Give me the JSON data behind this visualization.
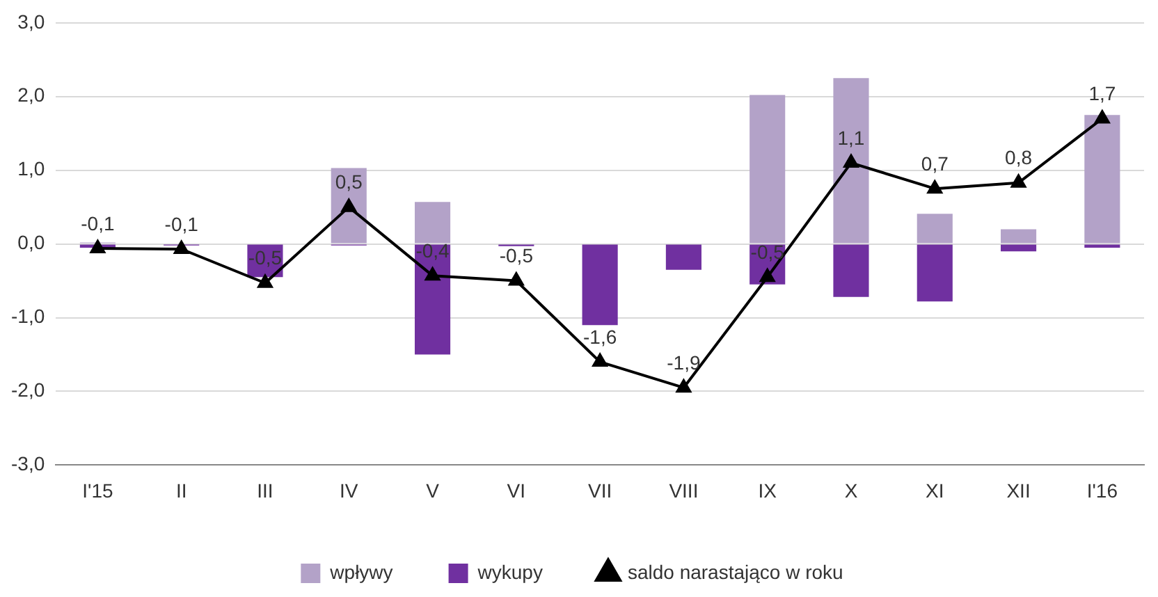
{
  "chart_data": {
    "type": "bar",
    "stacked": true,
    "categories": [
      "I'15",
      "II",
      "III",
      "IV",
      "V",
      "VI",
      "VII",
      "VIII",
      "IX",
      "X",
      "XI",
      "XII",
      "I'16"
    ],
    "series": [
      {
        "name": "wpływy",
        "color": "#b3a2c8",
        "values": [
          0.02,
          0.01,
          0,
          1.03,
          0.57,
          0,
          0,
          0,
          2.02,
          2.25,
          0.41,
          0.2,
          1.75
        ]
      },
      {
        "name": "wykupy",
        "color": "#7030a0",
        "values": [
          -0.05,
          -0.02,
          -0.45,
          -0.02,
          -1.5,
          -0.03,
          -1.1,
          -0.35,
          -0.55,
          -0.72,
          -0.78,
          -0.1,
          -0.05
        ]
      },
      {
        "name": "saldo narastająco w roku",
        "type": "line",
        "color": "#000000",
        "marker": "triangle",
        "values": [
          -0.06,
          -0.07,
          -0.53,
          0.5,
          -0.43,
          -0.5,
          -1.6,
          -1.95,
          -0.45,
          1.1,
          0.75,
          0.83,
          1.7
        ],
        "value_labels": [
          "-0,1",
          "-0,1",
          "-0,5",
          "0,5",
          "-0,4",
          "-0,5",
          "-1,6",
          "-1,9",
          "-0,5",
          "1,1",
          "0,7",
          "0,8",
          "1,7"
        ]
      }
    ],
    "ylim": [
      -3,
      3
    ],
    "yticks": [
      {
        "value": -3,
        "label": "-3,0"
      },
      {
        "value": -2,
        "label": "-2,0"
      },
      {
        "value": -1,
        "label": "-1,0"
      },
      {
        "value": 0,
        "label": "0,0"
      },
      {
        "value": 1,
        "label": "1,0"
      },
      {
        "value": 2,
        "label": "2,0"
      },
      {
        "value": 3,
        "label": "3,0"
      }
    ],
    "grid": "y",
    "legend": "bottom"
  }
}
